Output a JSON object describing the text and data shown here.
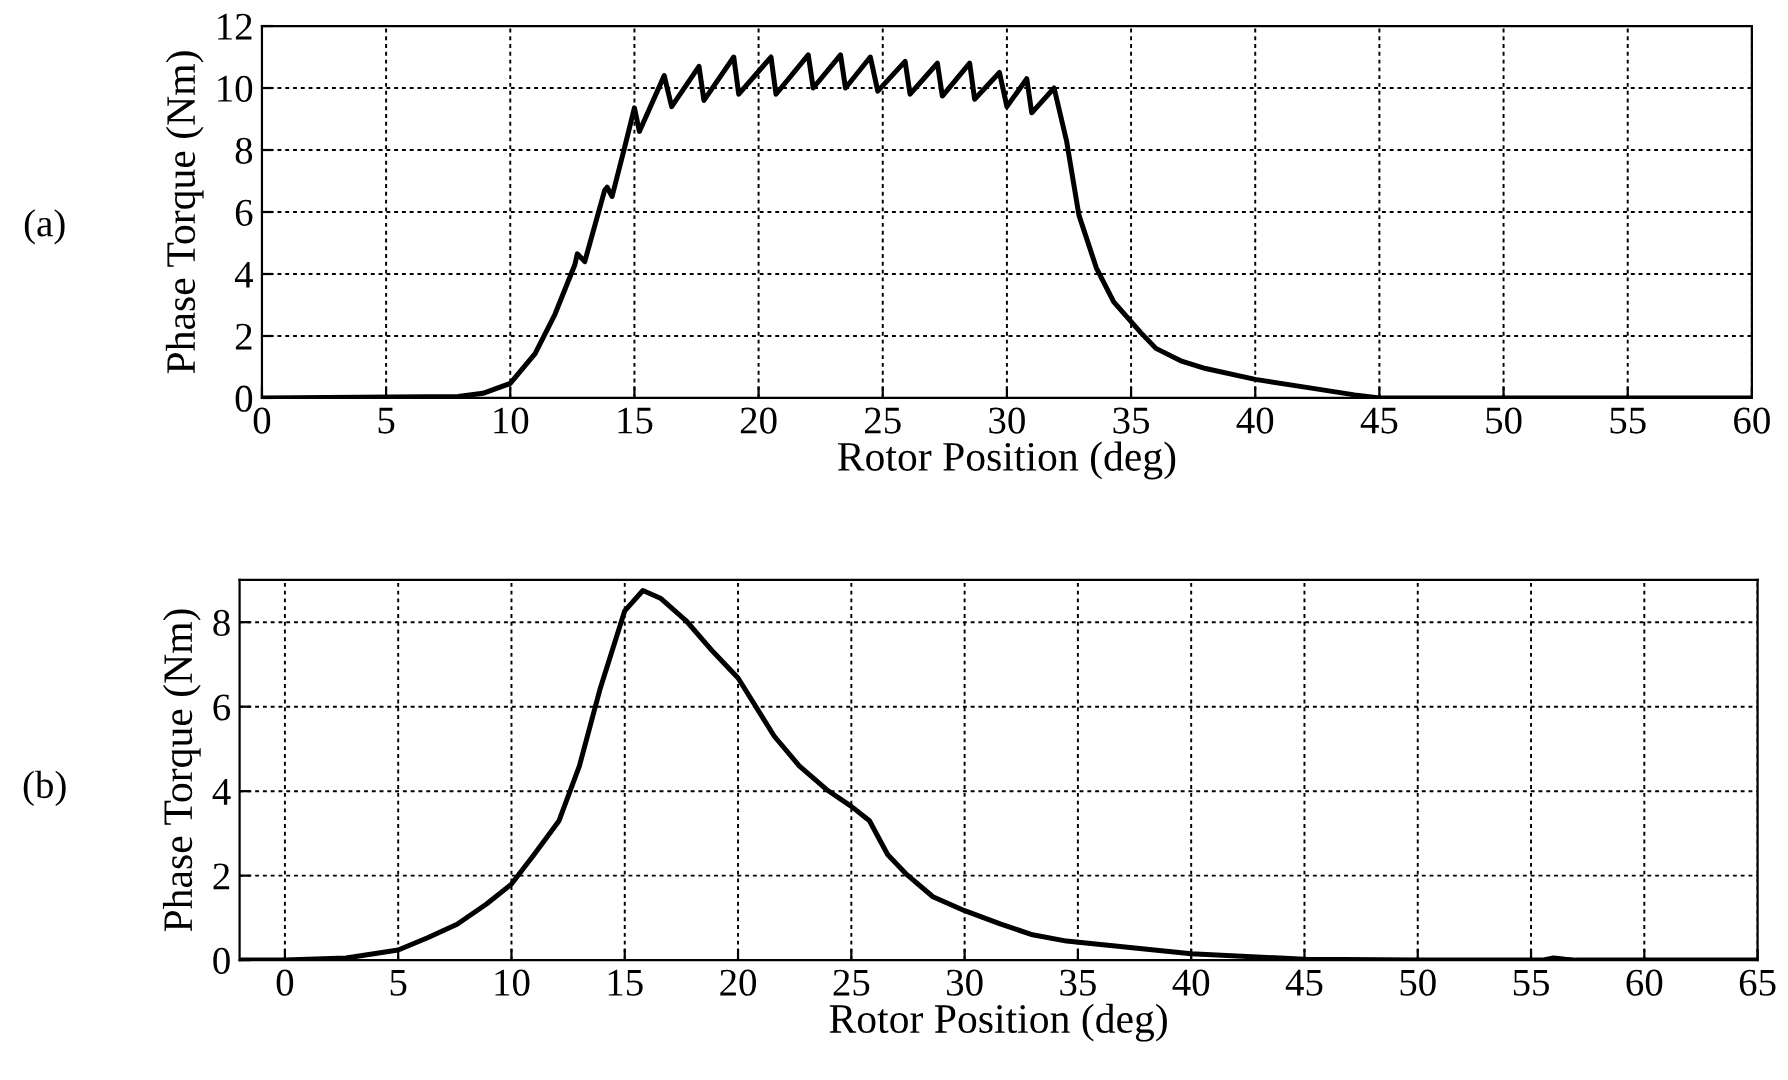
{
  "chart_data": [
    {
      "type": "line",
      "xlabel": "Rotor Position (deg)",
      "ylabel": "Phase Torque (Nm)",
      "annotations": [
        "(a)"
      ],
      "xlim": [
        0,
        60
      ],
      "ylim": [
        0,
        12
      ],
      "xticks": [
        0,
        5,
        10,
        15,
        20,
        25,
        30,
        35,
        40,
        45,
        50,
        55,
        60
      ],
      "yticks": [
        0,
        2,
        4,
        6,
        8,
        10,
        12
      ],
      "grid": true,
      "line_style": "solid",
      "marker": "none",
      "series": [
        {
          "color": "#000000",
          "x": [
            0,
            7.9,
            8.9,
            10,
            11,
            11.8,
            12.6,
            12.7,
            13.0,
            13.8,
            13.9,
            14.1,
            14.6,
            15.0,
            15.2,
            16.2,
            16.5,
            17.6,
            17.8,
            19.0,
            19.2,
            20.5,
            20.7,
            22.0,
            22.2,
            23.3,
            23.5,
            24.5,
            24.8,
            25.9,
            26.1,
            27.2,
            27.4,
            28.5,
            28.7,
            29.7,
            30.0,
            30.8,
            31.0,
            31.9,
            32.4,
            32.9,
            33.6,
            34.3,
            35.4,
            36,
            37,
            38,
            40,
            42,
            44,
            45,
            60
          ],
          "values": [
            0,
            0.05,
            0.15,
            0.47,
            1.43,
            2.7,
            4.3,
            4.65,
            4.4,
            6.7,
            6.8,
            6.5,
            8.07,
            9.36,
            8.6,
            10.4,
            9.4,
            10.7,
            9.6,
            11.0,
            9.8,
            11.0,
            9.8,
            11.07,
            10.0,
            11.07,
            10.0,
            11.0,
            9.9,
            10.86,
            9.8,
            10.8,
            9.74,
            10.8,
            9.64,
            10.5,
            9.4,
            10.3,
            9.2,
            10.0,
            8.3,
            5.9,
            4.2,
            3.1,
            2.1,
            1.6,
            1.2,
            0.95,
            0.6,
            0.35,
            0.1,
            0,
            0
          ]
        }
      ]
    },
    {
      "type": "line",
      "xlabel": "Rotor Position (deg)",
      "ylabel": "Phase Torque (Nm)",
      "annotations": [
        "(b)"
      ],
      "xlim": [
        -2,
        65
      ],
      "ylim": [
        0,
        9
      ],
      "xticks": [
        0,
        5,
        10,
        15,
        20,
        25,
        30,
        35,
        40,
        45,
        50,
        55,
        60,
        65
      ],
      "yticks": [
        0,
        2,
        4,
        6,
        8
      ],
      "grid": true,
      "line_style": "solid",
      "marker": "none",
      "series": [
        {
          "color": "#000000",
          "x": [
            -2,
            0,
            2.7,
            5,
            6.3,
            7.6,
            8.9,
            10,
            11,
            12.1,
            13,
            13.9,
            15,
            15.8,
            16.6,
            17.7,
            18.9,
            20,
            21.6,
            22.7,
            23.9,
            25,
            25.8,
            26.6,
            27.4,
            28.6,
            30,
            31.6,
            33,
            34.5,
            36,
            40,
            45,
            50,
            55.5,
            56,
            56.5,
            57,
            65
          ],
          "values": [
            0,
            0,
            0.05,
            0.24,
            0.53,
            0.85,
            1.33,
            1.8,
            2.5,
            3.3,
            4.6,
            6.4,
            8.27,
            8.75,
            8.56,
            8.04,
            7.3,
            6.68,
            5.3,
            4.6,
            4.04,
            3.64,
            3.3,
            2.5,
            2.05,
            1.5,
            1.17,
            0.85,
            0.6,
            0.45,
            0.37,
            0.15,
            0.02,
            0,
            0,
            0.05,
            0.02,
            0,
            0
          ]
        }
      ]
    }
  ]
}
